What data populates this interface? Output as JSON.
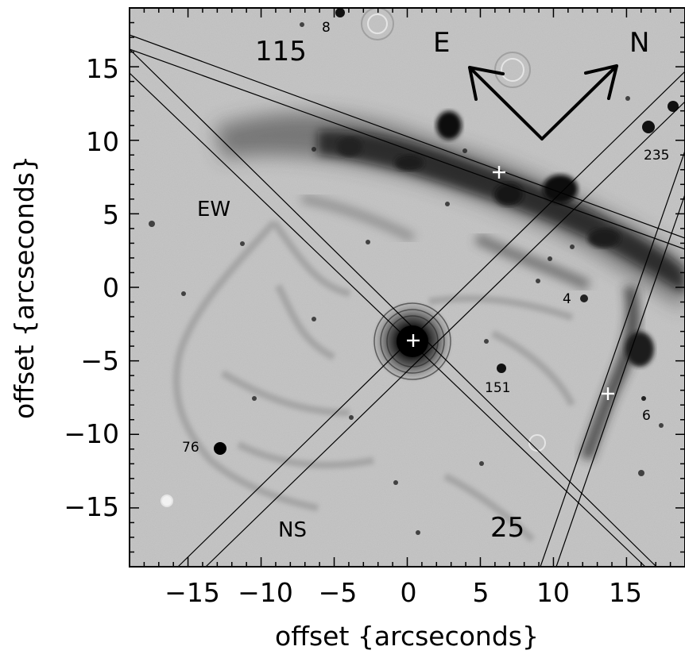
{
  "figure": {
    "xlabel": "offset {arcseconds}",
    "ylabel": "offset {arcseconds}",
    "xlim": [
      -19,
      19
    ],
    "ylim": [
      -19,
      19
    ],
    "x_ticks": [
      "−15",
      "−10",
      "−5",
      "0",
      "5",
      "10",
      "15"
    ],
    "y_ticks": [
      "15",
      "10",
      "5",
      "0",
      "−5",
      "−10",
      "−15"
    ],
    "colormap": "inverted grayscale",
    "background_color": "#bdbdbd",
    "nebula_color": "#1a1a1a"
  },
  "annotations": {
    "compass_east": "E",
    "compass_north": "N",
    "slit_115": "115",
    "slit_ew": "EW",
    "slit_ns": "NS",
    "slit_25": "25"
  },
  "star_labels": {
    "s8": "8",
    "s235": "235",
    "s4": "4",
    "s151": "151",
    "s6": "6",
    "s76": "76"
  }
}
